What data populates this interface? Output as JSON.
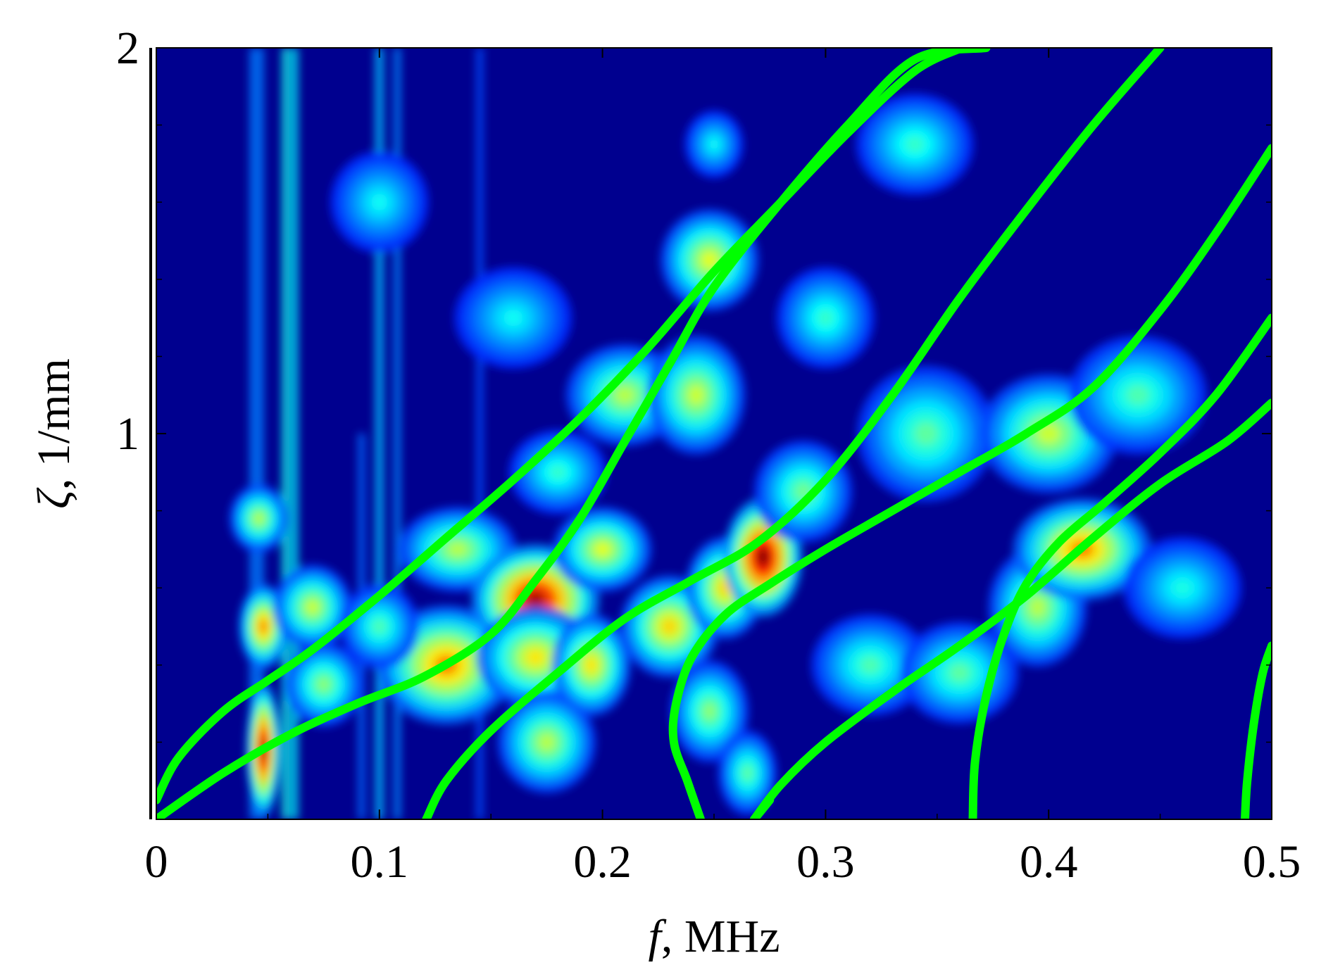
{
  "chart_data": {
    "type": "heatmap",
    "title": "",
    "xlabel_symbol": "f",
    "xlabel_unit": ", MHz",
    "ylabel_symbol": "ζ",
    "ylabel_unit": ", 1/mm",
    "xlim": [
      0,
      0.5
    ],
    "ylim": [
      0,
      2
    ],
    "x_ticks": [
      {
        "value": 0,
        "label": "0"
      },
      {
        "value": 0.1,
        "label": "0.1"
      },
      {
        "value": 0.2,
        "label": "0.2"
      },
      {
        "value": 0.3,
        "label": "0.3"
      },
      {
        "value": 0.4,
        "label": "0.4"
      },
      {
        "value": 0.5,
        "label": "0.5"
      }
    ],
    "y_ticks": [
      {
        "value": 1,
        "label": "1"
      },
      {
        "value": 2,
        "label": "2"
      }
    ],
    "y_minor_ticks": [
      0.2,
      0.4,
      0.6,
      0.8,
      1.2,
      1.4,
      1.6,
      1.8
    ],
    "x_minor_ticks": [
      0.05,
      0.15,
      0.25,
      0.35,
      0.45
    ],
    "colormap": "jet",
    "colors": {
      "background": "#00008f",
      "curve": "#00ff00",
      "hot": "#ff3000"
    },
    "hotspots": [
      {
        "x": 0.048,
        "y": 0.18,
        "sx": 0.0035,
        "sy": 0.08,
        "a": 0.97
      },
      {
        "x": 0.048,
        "y": 0.5,
        "sx": 0.005,
        "sy": 0.05,
        "a": 0.72
      },
      {
        "x": 0.046,
        "y": 0.78,
        "sx": 0.006,
        "sy": 0.04,
        "a": 0.5
      },
      {
        "x": 0.07,
        "y": 0.55,
        "sx": 0.008,
        "sy": 0.05,
        "a": 0.52
      },
      {
        "x": 0.075,
        "y": 0.35,
        "sx": 0.008,
        "sy": 0.05,
        "a": 0.45
      },
      {
        "x": 0.13,
        "y": 0.4,
        "sx": 0.014,
        "sy": 0.07,
        "a": 0.72
      },
      {
        "x": 0.135,
        "y": 0.7,
        "sx": 0.012,
        "sy": 0.05,
        "a": 0.5
      },
      {
        "x": 0.17,
        "y": 0.57,
        "sx": 0.013,
        "sy": 0.065,
        "a": 0.95
      },
      {
        "x": 0.17,
        "y": 0.42,
        "sx": 0.012,
        "sy": 0.06,
        "a": 0.6
      },
      {
        "x": 0.175,
        "y": 0.2,
        "sx": 0.01,
        "sy": 0.06,
        "a": 0.5
      },
      {
        "x": 0.195,
        "y": 0.4,
        "sx": 0.008,
        "sy": 0.06,
        "a": 0.6
      },
      {
        "x": 0.2,
        "y": 0.7,
        "sx": 0.01,
        "sy": 0.05,
        "a": 0.55
      },
      {
        "x": 0.21,
        "y": 1.1,
        "sx": 0.012,
        "sy": 0.06,
        "a": 0.5
      },
      {
        "x": 0.23,
        "y": 0.5,
        "sx": 0.01,
        "sy": 0.06,
        "a": 0.62
      },
      {
        "x": 0.242,
        "y": 1.1,
        "sx": 0.01,
        "sy": 0.07,
        "a": 0.52
      },
      {
        "x": 0.248,
        "y": 1.45,
        "sx": 0.01,
        "sy": 0.06,
        "a": 0.55
      },
      {
        "x": 0.255,
        "y": 0.6,
        "sx": 0.008,
        "sy": 0.06,
        "a": 0.62
      },
      {
        "x": 0.248,
        "y": 0.28,
        "sx": 0.008,
        "sy": 0.06,
        "a": 0.45
      },
      {
        "x": 0.272,
        "y": 0.68,
        "sx": 0.008,
        "sy": 0.07,
        "a": 1.0
      },
      {
        "x": 0.265,
        "y": 0.12,
        "sx": 0.006,
        "sy": 0.05,
        "a": 0.4
      },
      {
        "x": 0.29,
        "y": 0.85,
        "sx": 0.01,
        "sy": 0.06,
        "a": 0.42
      },
      {
        "x": 0.32,
        "y": 0.4,
        "sx": 0.012,
        "sy": 0.06,
        "a": 0.38
      },
      {
        "x": 0.345,
        "y": 1.0,
        "sx": 0.014,
        "sy": 0.08,
        "a": 0.4
      },
      {
        "x": 0.4,
        "y": 1.0,
        "sx": 0.014,
        "sy": 0.07,
        "a": 0.52
      },
      {
        "x": 0.395,
        "y": 0.55,
        "sx": 0.01,
        "sy": 0.07,
        "a": 0.5
      },
      {
        "x": 0.415,
        "y": 0.7,
        "sx": 0.014,
        "sy": 0.06,
        "a": 0.72
      },
      {
        "x": 0.36,
        "y": 0.38,
        "sx": 0.012,
        "sy": 0.06,
        "a": 0.4
      },
      {
        "x": 0.3,
        "y": 1.3,
        "sx": 0.01,
        "sy": 0.06,
        "a": 0.35
      },
      {
        "x": 0.34,
        "y": 1.75,
        "sx": 0.012,
        "sy": 0.06,
        "a": 0.35
      },
      {
        "x": 0.25,
        "y": 1.75,
        "sx": 0.006,
        "sy": 0.04,
        "a": 0.3
      },
      {
        "x": 0.44,
        "y": 1.1,
        "sx": 0.014,
        "sy": 0.07,
        "a": 0.38
      },
      {
        "x": 0.46,
        "y": 0.6,
        "sx": 0.012,
        "sy": 0.06,
        "a": 0.32
      },
      {
        "x": 0.1,
        "y": 1.6,
        "sx": 0.01,
        "sy": 0.06,
        "a": 0.3
      },
      {
        "x": 0.16,
        "y": 1.3,
        "sx": 0.012,
        "sy": 0.06,
        "a": 0.3
      },
      {
        "x": 0.18,
        "y": 0.9,
        "sx": 0.01,
        "sy": 0.05,
        "a": 0.35
      },
      {
        "x": 0.1,
        "y": 0.5,
        "sx": 0.008,
        "sy": 0.05,
        "a": 0.38
      }
    ],
    "ridges": [
      {
        "x": 0.058,
        "y0": 0.0,
        "y1": 2.0,
        "sx": 0.0016,
        "a": 0.55
      },
      {
        "x": 0.062,
        "y0": 0.0,
        "y1": 2.0,
        "sx": 0.0014,
        "a": 0.5
      },
      {
        "x": 0.045,
        "y0": 0.0,
        "y1": 2.0,
        "sx": 0.003,
        "a": 0.25
      },
      {
        "x": 0.1,
        "y0": 0.0,
        "y1": 2.0,
        "sx": 0.0018,
        "a": 0.38
      },
      {
        "x": 0.108,
        "y0": 0.0,
        "y1": 2.0,
        "sx": 0.0015,
        "a": 0.28
      },
      {
        "x": 0.092,
        "y0": 0.0,
        "y1": 1.0,
        "sx": 0.0015,
        "a": 0.22
      },
      {
        "x": 0.145,
        "y0": 0.0,
        "y1": 2.0,
        "sx": 0.0015,
        "a": 0.16
      }
    ],
    "series": [
      {
        "points": [
          [
            0.0,
            0.05
          ],
          [
            0.01,
            0.16
          ],
          [
            0.03,
            0.28
          ],
          [
            0.05,
            0.36
          ],
          [
            0.07,
            0.44
          ],
          [
            0.1,
            0.58
          ],
          [
            0.13,
            0.73
          ],
          [
            0.16,
            0.88
          ],
          [
            0.19,
            1.04
          ],
          [
            0.22,
            1.22
          ],
          [
            0.25,
            1.42
          ],
          [
            0.28,
            1.6
          ],
          [
            0.31,
            1.78
          ],
          [
            0.34,
            1.94
          ],
          [
            0.361,
            2.0
          ]
        ]
      },
      {
        "points": [
          [
            0.0,
            0.0
          ],
          [
            0.03,
            0.12
          ],
          [
            0.06,
            0.22
          ],
          [
            0.09,
            0.3
          ],
          [
            0.12,
            0.37
          ],
          [
            0.15,
            0.48
          ],
          [
            0.17,
            0.62
          ],
          [
            0.19,
            0.78
          ],
          [
            0.21,
            0.98
          ],
          [
            0.23,
            1.18
          ],
          [
            0.25,
            1.38
          ],
          [
            0.28,
            1.6
          ],
          [
            0.31,
            1.8
          ],
          [
            0.34,
            1.97
          ],
          [
            0.372,
            2.0
          ]
        ]
      },
      {
        "points": [
          [
            0.121,
            0.0
          ],
          [
            0.13,
            0.1
          ],
          [
            0.15,
            0.23
          ],
          [
            0.18,
            0.38
          ],
          [
            0.21,
            0.52
          ],
          [
            0.24,
            0.62
          ],
          [
            0.27,
            0.72
          ],
          [
            0.3,
            0.88
          ],
          [
            0.33,
            1.1
          ],
          [
            0.36,
            1.35
          ],
          [
            0.39,
            1.58
          ],
          [
            0.42,
            1.8
          ],
          [
            0.45,
            2.0
          ]
        ]
      },
      {
        "points": [
          [
            0.244,
            0.0
          ],
          [
            0.238,
            0.1
          ],
          [
            0.232,
            0.2
          ],
          [
            0.233,
            0.3
          ],
          [
            0.24,
            0.42
          ],
          [
            0.255,
            0.53
          ],
          [
            0.275,
            0.61
          ],
          [
            0.3,
            0.7
          ],
          [
            0.33,
            0.8
          ],
          [
            0.36,
            0.9
          ],
          [
            0.39,
            1.0
          ],
          [
            0.42,
            1.12
          ],
          [
            0.45,
            1.32
          ],
          [
            0.475,
            1.52
          ],
          [
            0.5,
            1.74
          ]
        ]
      },
      {
        "points": [
          [
            0.268,
            0.0
          ],
          [
            0.28,
            0.09
          ],
          [
            0.3,
            0.2
          ],
          [
            0.33,
            0.33
          ],
          [
            0.36,
            0.45
          ],
          [
            0.39,
            0.58
          ],
          [
            0.42,
            0.73
          ],
          [
            0.45,
            0.87
          ],
          [
            0.48,
            0.98
          ],
          [
            0.5,
            1.08
          ]
        ]
      },
      {
        "points": [
          [
            0.268,
            0.0
          ],
          [
            0.275,
            0.05
          ]
        ]
      },
      {
        "points": [
          [
            0.366,
            0.0
          ],
          [
            0.367,
            0.15
          ],
          [
            0.372,
            0.32
          ],
          [
            0.38,
            0.48
          ],
          [
            0.39,
            0.61
          ],
          [
            0.405,
            0.72
          ],
          [
            0.425,
            0.82
          ],
          [
            0.45,
            0.95
          ],
          [
            0.475,
            1.1
          ],
          [
            0.5,
            1.3
          ]
        ]
      },
      {
        "points": [
          [
            0.488,
            0.0
          ],
          [
            0.489,
            0.1
          ],
          [
            0.492,
            0.25
          ],
          [
            0.496,
            0.38
          ],
          [
            0.5,
            0.45
          ]
        ]
      }
    ]
  }
}
